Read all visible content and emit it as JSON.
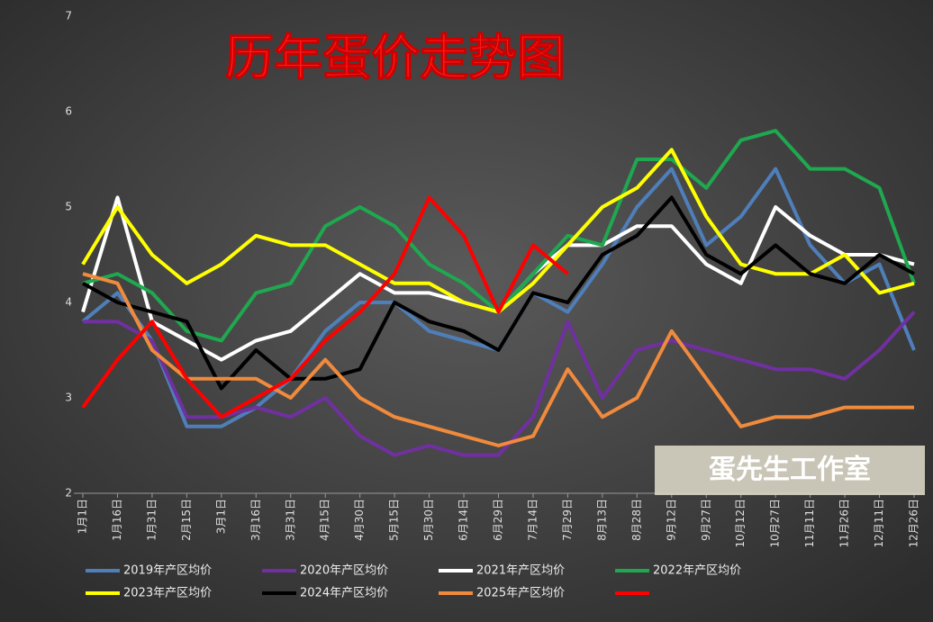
{
  "chart_data": {
    "type": "line",
    "title": "历年蛋价走势图",
    "watermark": "蛋先生工作室",
    "categories": [
      "1月1日",
      "1月16日",
      "1月31日",
      "2月15日",
      "3月1日",
      "3月16日",
      "3月31日",
      "4月15日",
      "4月30日",
      "5月15日",
      "5月30日",
      "6月14日",
      "6月29日",
      "7月14日",
      "7月29日",
      "8月13日",
      "8月28日",
      "9月12日",
      "9月27日",
      "10月12日",
      "10月27日",
      "11月11日",
      "11月26日",
      "12月11日",
      "12月26日"
    ],
    "ylim": [
      2,
      7
    ],
    "yticks": [
      2,
      3,
      4,
      5,
      6,
      7
    ],
    "series": [
      {
        "name": "2019年产区均价",
        "color": "#4f7fba",
        "values": [
          3.8,
          4.1,
          3.6,
          2.7,
          2.7,
          2.9,
          3.2,
          3.7,
          4.0,
          4.0,
          3.7,
          3.6,
          3.5,
          4.1,
          3.9,
          4.4,
          5.0,
          5.4,
          4.6,
          4.9,
          5.4,
          4.6,
          4.2,
          4.4,
          3.5
        ]
      },
      {
        "name": "2020年产区均价",
        "color": "#7030a0",
        "values": [
          3.8,
          3.8,
          3.6,
          2.8,
          2.8,
          2.9,
          2.8,
          3.0,
          2.6,
          2.4,
          2.5,
          2.4,
          2.4,
          2.8,
          3.8,
          3.0,
          3.5,
          3.6,
          3.5,
          3.4,
          3.3,
          3.3,
          3.2,
          3.5,
          3.9
        ]
      },
      {
        "name": "2021年产区均价",
        "color": "#ffffff",
        "values": [
          3.9,
          5.1,
          3.8,
          3.6,
          3.4,
          3.6,
          3.7,
          4.0,
          4.3,
          4.1,
          4.1,
          4.0,
          3.9,
          4.3,
          4.6,
          4.6,
          4.8,
          4.8,
          4.4,
          4.2,
          5.0,
          4.7,
          4.5,
          4.5,
          4.4
        ]
      },
      {
        "name": "2022年产区均价",
        "color": "#1fa84f",
        "values": [
          4.2,
          4.3,
          4.1,
          3.7,
          3.6,
          4.1,
          4.2,
          4.8,
          5.0,
          4.8,
          4.4,
          4.2,
          3.9,
          4.3,
          4.7,
          4.6,
          5.5,
          5.5,
          5.2,
          5.7,
          5.8,
          5.4,
          5.4,
          5.2,
          4.2
        ]
      },
      {
        "name": "2023年产区均价",
        "color": "#ffff00",
        "values": [
          4.4,
          5.0,
          4.5,
          4.2,
          4.4,
          4.7,
          4.6,
          4.6,
          4.4,
          4.2,
          4.2,
          4.0,
          3.9,
          4.2,
          4.6,
          5.0,
          5.2,
          5.6,
          4.9,
          4.4,
          4.3,
          4.3,
          4.5,
          4.1,
          4.2
        ]
      },
      {
        "name": "2024年产区均价",
        "color": "#000000",
        "values": [
          4.2,
          4.0,
          3.9,
          3.8,
          3.1,
          3.5,
          3.2,
          3.2,
          3.3,
          4.0,
          3.8,
          3.7,
          3.5,
          4.1,
          4.0,
          4.5,
          4.7,
          5.1,
          4.5,
          4.3,
          4.6,
          4.3,
          4.2,
          4.5,
          4.3
        ]
      },
      {
        "name": "2025年产区均价",
        "color": "#f08a3c",
        "values": [
          4.3,
          4.2,
          3.5,
          3.2,
          3.2,
          3.2,
          3.0,
          3.4,
          3.0,
          2.8,
          2.7,
          2.6,
          2.5,
          2.6,
          3.3,
          2.8,
          3.0,
          3.7,
          3.2,
          2.7,
          2.8,
          2.8,
          2.9,
          2.9,
          2.9
        ]
      },
      {
        "color": "#ff0000",
        "values": [
          2.9,
          3.4,
          3.8,
          3.2,
          2.8,
          3.0,
          3.2,
          3.6,
          3.9,
          4.3,
          5.1,
          4.7,
          3.9,
          4.6,
          4.3,
          null,
          null,
          null,
          null,
          null,
          null,
          null,
          null,
          null,
          null
        ]
      }
    ]
  }
}
